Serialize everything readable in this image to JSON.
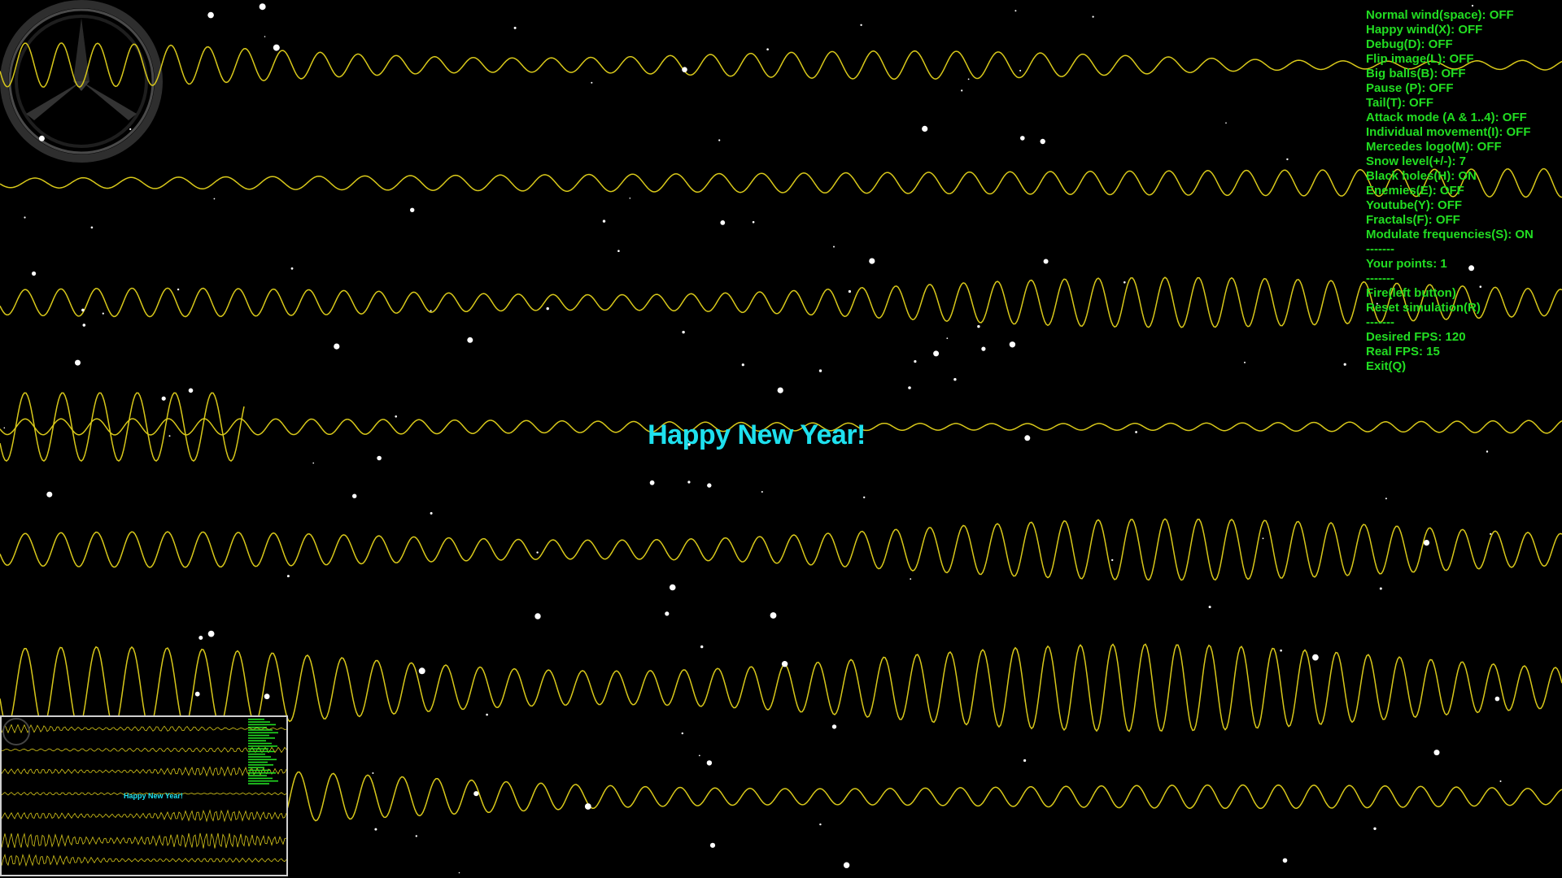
{
  "window": {
    "greeting": "Happy New Year!"
  },
  "menu": [
    {
      "label": "Normal wind(space): OFF"
    },
    {
      "label": "Happy wind(X): OFF"
    },
    {
      "label": "Debug(D): OFF"
    },
    {
      "label": "Flip image(L): OFF"
    },
    {
      "label": "Big balls(B): OFF"
    },
    {
      "label": "Pause (P): OFF"
    },
    {
      "label": "Tail(T): OFF"
    },
    {
      "label": "Attack mode (A & 1..4): OFF"
    },
    {
      "label": "Individual movement(I): OFF"
    },
    {
      "label": "Mercedes logo(M): OFF"
    },
    {
      "label": "Snow level(+/-): 7"
    },
    {
      "label": "Black holes(H): ON"
    },
    {
      "label": "Enemies(E): OFF"
    },
    {
      "label": "Youtube(Y): OFF"
    },
    {
      "label": "Fractals(F): OFF"
    },
    {
      "label": "Modulate frequencies(S): ON"
    },
    {
      "label": "-------"
    },
    {
      "label": "Your points: 1"
    },
    {
      "label": "-------"
    },
    {
      "label": "Fire(left button)"
    },
    {
      "label": "Reset simulation(R)"
    },
    {
      "label": "-------"
    },
    {
      "label": "Desired FPS: 120"
    },
    {
      "label": "Real FPS: 15"
    },
    {
      "label": "Exit(Q)"
    }
  ],
  "colors": {
    "background": "#000000",
    "wave": "#d8c81a",
    "menu_text": "#22dd22",
    "greeting": "#1ee0ee",
    "snow": "#ffffff",
    "logo": "#3a3a3a"
  },
  "icons": {
    "logo": "mercedes-star-icon"
  }
}
